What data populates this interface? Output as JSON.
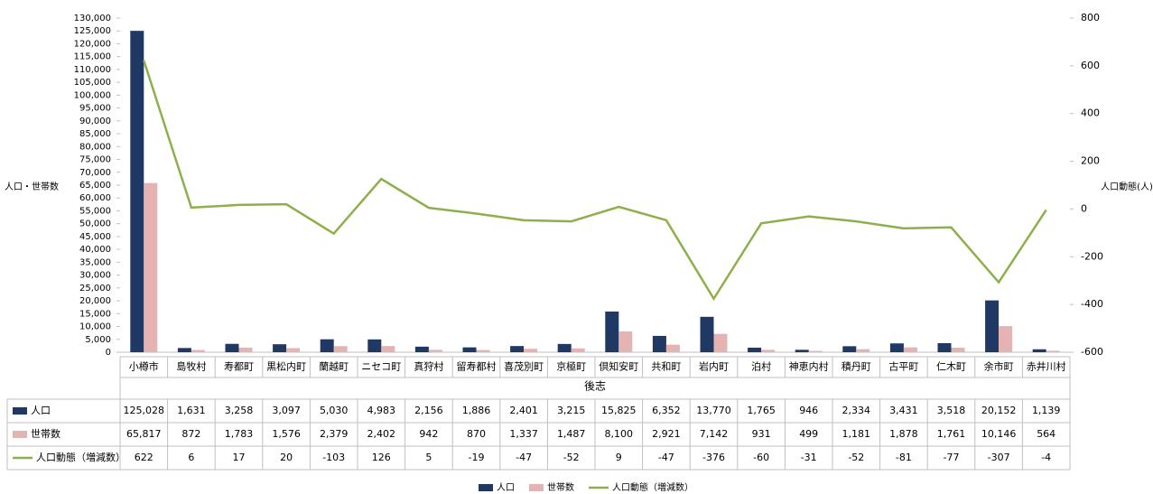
{
  "chart_data": {
    "type": "bar_line_table",
    "x_label": "後志",
    "y_label": "人口・世帯数",
    "y2_label": "人口動態(人)",
    "categories": [
      "小樽市",
      "島牧村",
      "寿都町",
      "黒松内町",
      "蘭越町",
      "ニセコ町",
      "真狩村",
      "留寿都村",
      "喜茂別町",
      "京極町",
      "倶知安町",
      "共和町",
      "岩内町",
      "泊村",
      "神恵内村",
      "積丹町",
      "古平町",
      "仁木町",
      "余市町",
      "赤井川村"
    ],
    "series": [
      {
        "name": "人口",
        "type": "bar",
        "color": "#1f3864",
        "axis": "y",
        "values": [
          125028,
          1631,
          3258,
          3097,
          5030,
          4983,
          2156,
          1886,
          2401,
          3215,
          15825,
          6352,
          13770,
          1765,
          946,
          2334,
          3431,
          3518,
          20152,
          1139
        ],
        "value_labels": [
          "125,028",
          "1,631",
          "3,258",
          "3,097",
          "5,030",
          "4,983",
          "2,156",
          "1,886",
          "2,401",
          "3,215",
          "15,825",
          "6,352",
          "13,770",
          "1,765",
          "946",
          "2,334",
          "3,431",
          "3,518",
          "20,152",
          "1,139"
        ]
      },
      {
        "name": "世帯数",
        "type": "bar",
        "color": "#e6b3b3",
        "axis": "y",
        "values": [
          65817,
          872,
          1783,
          1576,
          2379,
          2402,
          942,
          870,
          1337,
          1487,
          8100,
          2921,
          7142,
          931,
          499,
          1181,
          1878,
          1761,
          10146,
          564
        ],
        "value_labels": [
          "65,817",
          "872",
          "1,783",
          "1,576",
          "2,379",
          "2,402",
          "942",
          "870",
          "1,337",
          "1,487",
          "8,100",
          "2,921",
          "7,142",
          "931",
          "499",
          "1,181",
          "1,878",
          "1,761",
          "10,146",
          "564"
        ]
      },
      {
        "name": "人口動態（増減数）",
        "type": "line",
        "color": "#8db04a",
        "axis": "y2",
        "values": [
          622,
          6,
          17,
          20,
          -103,
          126,
          5,
          -19,
          -47,
          -52,
          9,
          -47,
          -376,
          -60,
          -31,
          -52,
          -81,
          -77,
          -307,
          -4
        ]
      }
    ],
    "ylim": [
      0,
      130000
    ],
    "yticks": [
      0,
      {
        "value": 5000,
        "label": "5,000"
      },
      {
        "value": 10000,
        "label": "10,000"
      },
      {
        "value": 15000,
        "label": "15,000"
      },
      {
        "value": 20000,
        "label": "20,000"
      },
      {
        "value": 25000,
        "label": "25,000"
      },
      {
        "value": 30000,
        "label": "30,000"
      },
      {
        "value": 35000,
        "label": "35,000"
      },
      {
        "value": 40000,
        "label": "40,000"
      },
      {
        "value": 45000,
        "label": "45,000"
      },
      {
        "value": 50000,
        "label": "50,000"
      },
      {
        "value": 55000,
        "label": "55,000"
      },
      {
        "value": 60000,
        "label": "60,000"
      },
      {
        "value": 65000,
        "label": "65,000"
      },
      {
        "value": 70000,
        "label": "70,000"
      },
      {
        "value": 75000,
        "label": "75,000"
      },
      {
        "value": 80000,
        "label": "80,000"
      },
      {
        "value": 85000,
        "label": "85,000"
      },
      {
        "value": 90000,
        "label": "90,000"
      },
      {
        "value": 95000,
        "label": "95,000"
      },
      {
        "value": 100000,
        "label": "100,000"
      },
      {
        "value": 105000,
        "label": "105,000"
      },
      {
        "value": 110000,
        "label": "110,000"
      },
      {
        "value": 115000,
        "label": "115,000"
      },
      {
        "value": 120000,
        "label": "120,000"
      },
      {
        "value": 125000,
        "label": "125,000"
      },
      {
        "value": 130000,
        "label": "130,000"
      }
    ],
    "y2lim": [
      -600,
      800
    ],
    "y2ticks": [
      -600,
      -400,
      -200,
      0,
      200,
      400,
      600,
      800
    ],
    "y2_negative_color": "#ff0000",
    "legend": "bottom"
  }
}
